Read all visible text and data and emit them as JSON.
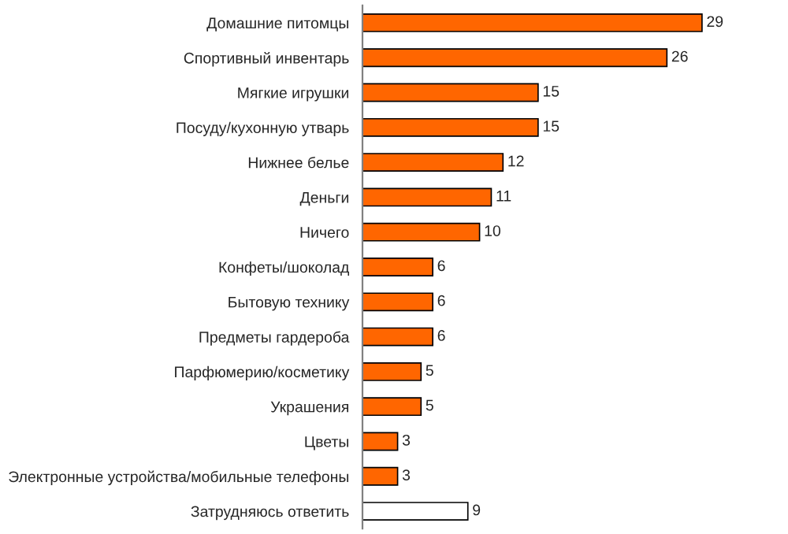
{
  "chart_data": {
    "type": "bar",
    "orientation": "horizontal",
    "categories": [
      "Домашние питомцы",
      "Спортивный инвентарь",
      "Мягкие игрушки",
      "Посуду/кухонную утварь",
      "Нижнее белье",
      "Деньги",
      "Ничего",
      "Конфеты/шоколад",
      "Бытовую технику",
      "Предметы гардероба",
      "Парфюмерию/косметику",
      "Украшения",
      "Цветы",
      "Электронные устройства/мобильные телефоны",
      "Затрудняюсь ответить"
    ],
    "values": [
      29,
      26,
      15,
      15,
      12,
      11,
      10,
      6,
      6,
      6,
      5,
      5,
      3,
      3,
      9
    ],
    "colors": [
      "#ff6600",
      "#ff6600",
      "#ff6600",
      "#ff6600",
      "#ff6600",
      "#ff6600",
      "#ff6600",
      "#ff6600",
      "#ff6600",
      "#ff6600",
      "#ff6600",
      "#ff6600",
      "#ff6600",
      "#ff6600",
      "#ffffff"
    ],
    "data_labels": true,
    "tick_labels": "y",
    "grid": false,
    "legend": false
  }
}
